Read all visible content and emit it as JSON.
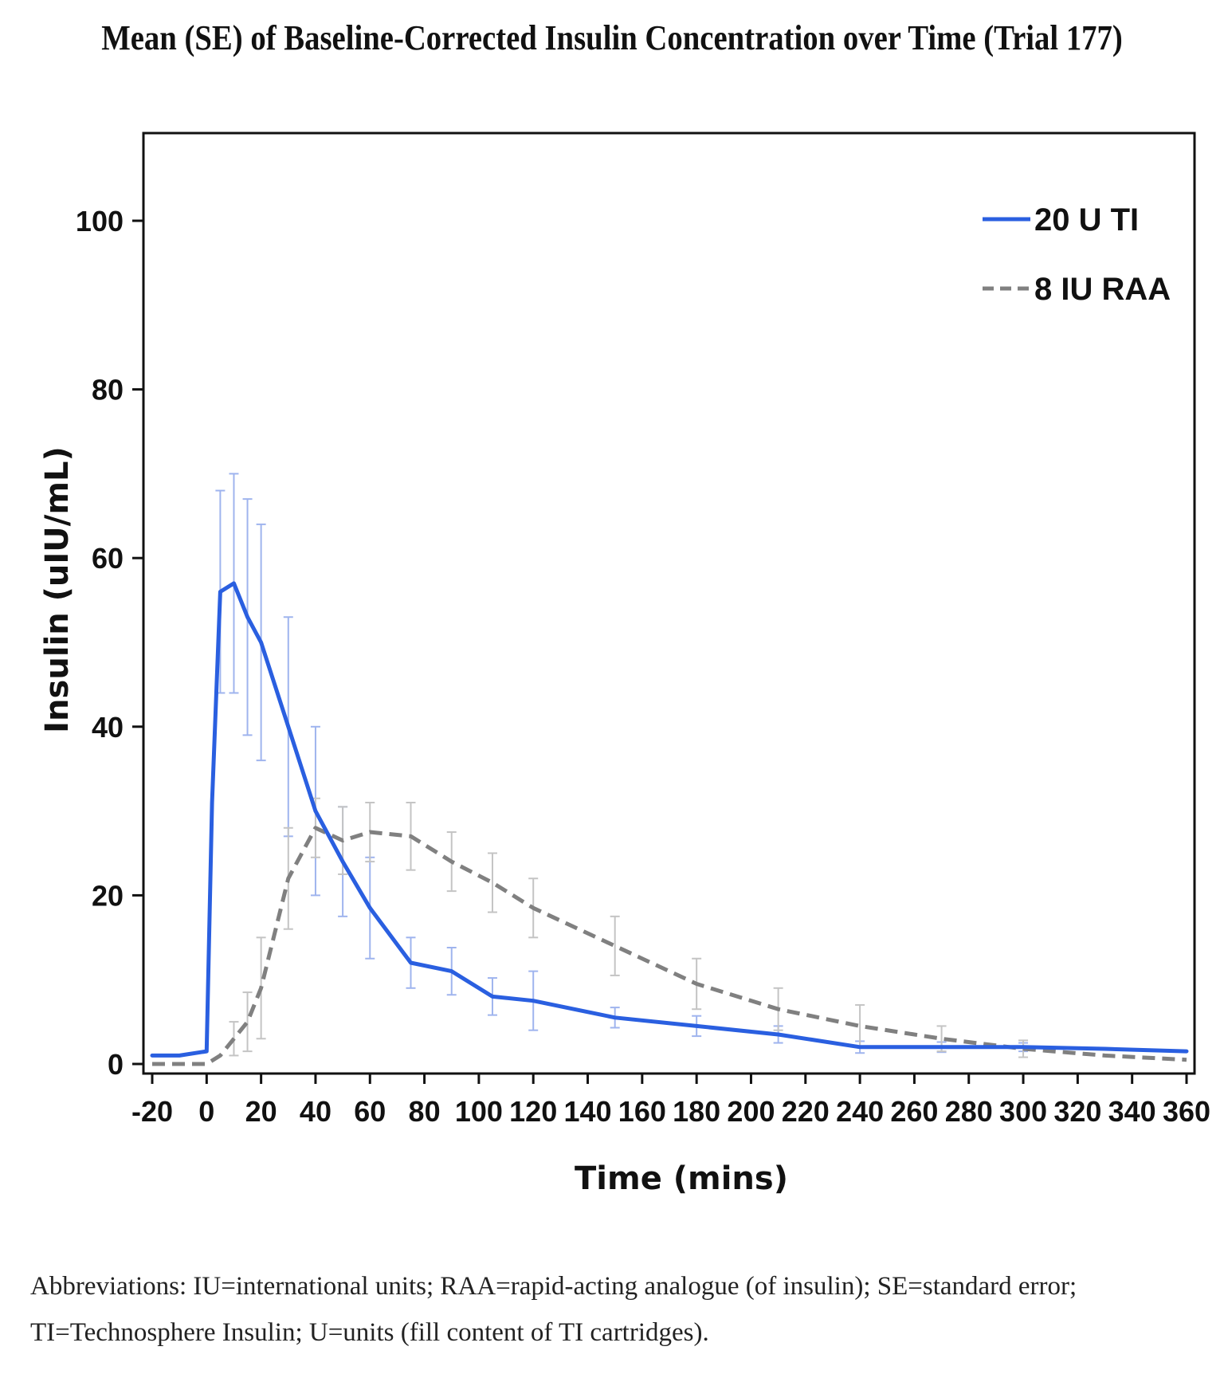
{
  "title": "Mean (SE) of Baseline-Corrected Insulin Concentration over Time (Trial 177)",
  "footnote": "Abbreviations: IU=international units; RAA=rapid-acting analogue (of insulin); SE=standard error; TI=Technosphere Insulin; U=units (fill content of TI cartridges).",
  "chart_data": {
    "type": "line",
    "title": "Mean (SE) of Baseline-Corrected Insulin Concentration over Time (Trial 177)",
    "xlabel": "Time (mins)",
    "ylabel": "Insulin (uIU/mL)",
    "xlim": [
      -20,
      360
    ],
    "ylim": [
      0,
      110
    ],
    "xticks": [
      -20,
      0,
      20,
      40,
      60,
      80,
      100,
      120,
      140,
      160,
      180,
      200,
      220,
      240,
      260,
      280,
      300,
      320,
      340,
      360
    ],
    "yticks": [
      0,
      20,
      40,
      60,
      80,
      100
    ],
    "legend_position": "top-right",
    "grid": false,
    "series": [
      {
        "name": "20 U TI",
        "color": "#2a5fe0",
        "style": "solid",
        "x": [
          -20,
          -10,
          0,
          2,
          5,
          10,
          15,
          20,
          30,
          40,
          50,
          60,
          75,
          90,
          105,
          120,
          150,
          180,
          210,
          240,
          270,
          300,
          330,
          360
        ],
        "y": [
          1,
          1,
          1.5,
          31,
          56,
          57,
          53,
          50,
          40,
          30,
          24,
          18.5,
          12,
          11,
          8,
          7.5,
          5.5,
          4.5,
          3.5,
          2,
          2,
          2,
          1.8,
          1.5
        ],
        "se": [
          null,
          null,
          null,
          null,
          12,
          13,
          14,
          14,
          13,
          10,
          6.5,
          6,
          3,
          2.8,
          2.2,
          3.5,
          1.2,
          1.2,
          1,
          0.7,
          0.6,
          0.5,
          null,
          null
        ]
      },
      {
        "name": "8 IU RAA",
        "color": "#808080",
        "style": "dashed",
        "x": [
          -20,
          -10,
          0,
          5,
          10,
          15,
          20,
          30,
          40,
          50,
          60,
          75,
          90,
          105,
          120,
          150,
          180,
          210,
          240,
          270,
          300,
          330,
          360
        ],
        "y": [
          0,
          0,
          0,
          1,
          3,
          5,
          9,
          22,
          28,
          26.5,
          27.5,
          27,
          24,
          21.5,
          18.5,
          14,
          9.5,
          6.5,
          4.5,
          3,
          1.8,
          1,
          0.5
        ],
        "se": [
          null,
          null,
          null,
          null,
          2,
          3.5,
          6,
          6,
          3.5,
          4,
          3.5,
          4,
          3.5,
          3.5,
          3.5,
          3.5,
          3,
          2.5,
          2.5,
          1.5,
          1,
          null,
          null
        ]
      }
    ]
  }
}
